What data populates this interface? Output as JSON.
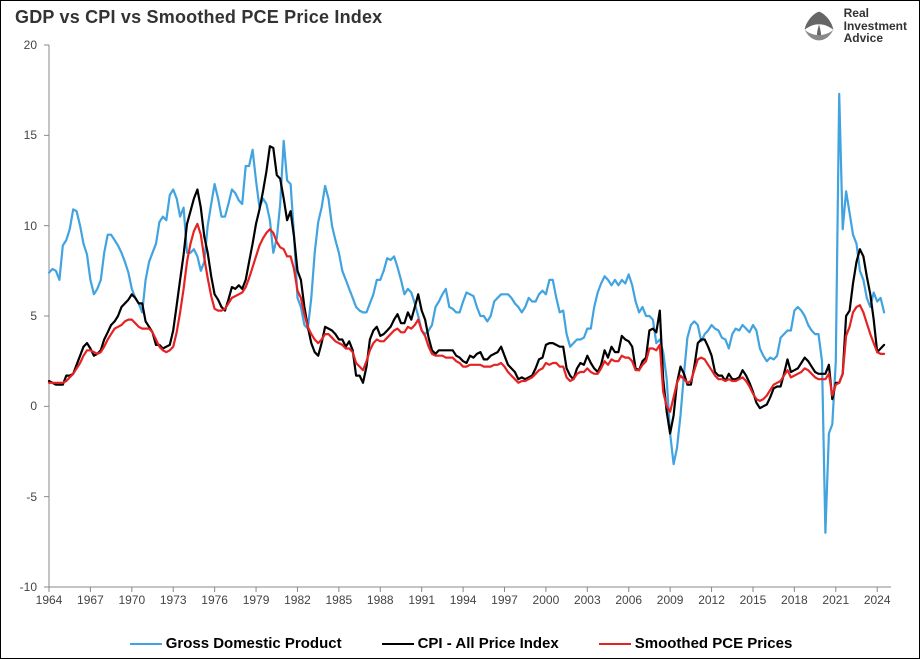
{
  "title": "GDP vs CPI vs Smoothed PCE Price Index",
  "logo": {
    "line1": "Real",
    "line2": "Investment",
    "line3": "Advice"
  },
  "chart": {
    "type": "line",
    "background_color": "#ffffff",
    "title_fontsize": 18,
    "title_fontweight": 700,
    "title_color": "#333333",
    "axis_color": "#888888",
    "tick_label_fontsize": 12,
    "tick_label_color": "#444444",
    "line_width": 2.2,
    "yaxis": {
      "min": -10,
      "max": 20,
      "tick_step": 5,
      "ticks": [
        -10,
        -5,
        0,
        5,
        10,
        15,
        20
      ]
    },
    "xaxis": {
      "min": 1964,
      "max": 2025,
      "tick_step": 3,
      "ticks": [
        1964,
        1967,
        1970,
        1973,
        1976,
        1979,
        1982,
        1985,
        1988,
        1991,
        1994,
        1997,
        2000,
        2003,
        2006,
        2009,
        2012,
        2015,
        2018,
        2021,
        2024
      ]
    },
    "years": [
      1964.0,
      1964.25,
      1964.5,
      1964.75,
      1965.0,
      1965.25,
      1965.5,
      1965.75,
      1966.0,
      1966.25,
      1966.5,
      1966.75,
      1967.0,
      1967.25,
      1967.5,
      1967.75,
      1968.0,
      1968.25,
      1968.5,
      1968.75,
      1969.0,
      1969.25,
      1969.5,
      1969.75,
      1970.0,
      1970.25,
      1970.5,
      1970.75,
      1971.0,
      1971.25,
      1971.5,
      1971.75,
      1972.0,
      1972.25,
      1972.5,
      1972.75,
      1973.0,
      1973.25,
      1973.5,
      1973.75,
      1974.0,
      1974.25,
      1974.5,
      1974.75,
      1975.0,
      1975.25,
      1975.5,
      1975.75,
      1976.0,
      1976.25,
      1976.5,
      1976.75,
      1977.0,
      1977.25,
      1977.5,
      1977.75,
      1978.0,
      1978.25,
      1978.5,
      1978.75,
      1979.0,
      1979.25,
      1979.5,
      1979.75,
      1980.0,
      1980.25,
      1980.5,
      1980.75,
      1981.0,
      1981.25,
      1981.5,
      1981.75,
      1982.0,
      1982.25,
      1982.5,
      1982.75,
      1983.0,
      1983.25,
      1983.5,
      1983.75,
      1984.0,
      1984.25,
      1984.5,
      1984.75,
      1985.0,
      1985.25,
      1985.5,
      1985.75,
      1986.0,
      1986.25,
      1986.5,
      1986.75,
      1987.0,
      1987.25,
      1987.5,
      1987.75,
      1988.0,
      1988.25,
      1988.5,
      1988.75,
      1989.0,
      1989.25,
      1989.5,
      1989.75,
      1990.0,
      1990.25,
      1990.5,
      1990.75,
      1991.0,
      1991.25,
      1991.5,
      1991.75,
      1992.0,
      1992.25,
      1992.5,
      1992.75,
      1993.0,
      1993.25,
      1993.5,
      1993.75,
      1994.0,
      1994.25,
      1994.5,
      1994.75,
      1995.0,
      1995.25,
      1995.5,
      1995.75,
      1996.0,
      1996.25,
      1996.5,
      1996.75,
      1997.0,
      1997.25,
      1997.5,
      1997.75,
      1998.0,
      1998.25,
      1998.5,
      1998.75,
      1999.0,
      1999.25,
      1999.5,
      1999.75,
      2000.0,
      2000.25,
      2000.5,
      2000.75,
      2001.0,
      2001.25,
      2001.5,
      2001.75,
      2002.0,
      2002.25,
      2002.5,
      2002.75,
      2003.0,
      2003.25,
      2003.5,
      2003.75,
      2004.0,
      2004.25,
      2004.5,
      2004.75,
      2005.0,
      2005.25,
      2005.5,
      2005.75,
      2006.0,
      2006.25,
      2006.5,
      2006.75,
      2007.0,
      2007.25,
      2007.5,
      2007.75,
      2008.0,
      2008.25,
      2008.5,
      2008.75,
      2009.0,
      2009.25,
      2009.5,
      2009.75,
      2010.0,
      2010.25,
      2010.5,
      2010.75,
      2011.0,
      2011.25,
      2011.5,
      2011.75,
      2012.0,
      2012.25,
      2012.5,
      2012.75,
      2013.0,
      2013.25,
      2013.5,
      2013.75,
      2014.0,
      2014.25,
      2014.5,
      2014.75,
      2015.0,
      2015.25,
      2015.5,
      2015.75,
      2016.0,
      2016.25,
      2016.5,
      2016.75,
      2017.0,
      2017.25,
      2017.5,
      2017.75,
      2018.0,
      2018.25,
      2018.5,
      2018.75,
      2019.0,
      2019.25,
      2019.5,
      2019.75,
      2020.0,
      2020.25,
      2020.5,
      2020.75,
      2021.0,
      2021.25,
      2021.5,
      2021.75,
      2022.0,
      2022.25,
      2022.5,
      2022.75,
      2023.0,
      2023.25,
      2023.5,
      2023.75,
      2024.0,
      2024.25,
      2024.5
    ],
    "series": [
      {
        "name": "Gross Domestic Product",
        "color": "#41a3df",
        "legend_color": "#41a3df",
        "values": [
          7.4,
          7.6,
          7.5,
          7.0,
          8.9,
          9.2,
          9.8,
          10.9,
          10.8,
          10.0,
          9.0,
          8.4,
          7.0,
          6.2,
          6.5,
          7.0,
          8.5,
          9.5,
          9.5,
          9.2,
          8.9,
          8.5,
          8.0,
          7.4,
          6.5,
          6.0,
          5.7,
          5.2,
          7.0,
          8.0,
          8.5,
          9.0,
          10.2,
          10.5,
          10.3,
          11.7,
          12.0,
          11.5,
          10.5,
          11.0,
          8.5,
          8.5,
          8.7,
          8.3,
          7.5,
          8.0,
          10.0,
          11.2,
          12.3,
          11.5,
          10.5,
          10.5,
          11.2,
          12.0,
          11.8,
          11.4,
          11.2,
          13.3,
          13.3,
          14.2,
          12.5,
          11.0,
          11.5,
          11.2,
          10.3,
          8.5,
          9.3,
          11.2,
          14.7,
          12.5,
          12.3,
          9.5,
          6.0,
          5.5,
          4.5,
          4.3,
          6.0,
          8.5,
          10.2,
          11.0,
          12.2,
          11.5,
          10.0,
          9.2,
          8.5,
          7.5,
          7.0,
          6.5,
          6.0,
          5.5,
          5.3,
          5.2,
          5.2,
          5.7,
          6.2,
          7.0,
          7.0,
          7.5,
          8.2,
          8.1,
          8.3,
          7.7,
          7.0,
          6.2,
          6.5,
          6.3,
          5.7,
          5.0,
          4.2,
          4.0,
          4.2,
          4.5,
          5.5,
          5.8,
          6.2,
          6.5,
          5.5,
          5.4,
          5.2,
          5.2,
          5.8,
          6.3,
          6.2,
          6.1,
          5.5,
          5.0,
          5.0,
          4.7,
          5.0,
          5.8,
          6.0,
          6.2,
          6.2,
          6.2,
          6.0,
          5.7,
          5.5,
          5.2,
          5.5,
          6.0,
          5.8,
          5.8,
          6.2,
          6.4,
          6.2,
          7.0,
          7.0,
          6.0,
          5.2,
          5.3,
          4.0,
          3.3,
          3.5,
          3.7,
          3.7,
          3.8,
          4.3,
          4.3,
          5.5,
          6.3,
          6.8,
          7.2,
          7.0,
          6.7,
          7.0,
          6.7,
          7.0,
          6.8,
          7.3,
          6.7,
          5.8,
          5.2,
          5.5,
          5.0,
          5.0,
          4.8,
          3.5,
          3.7,
          3.0,
          1.5,
          -1.5,
          -3.2,
          -2.3,
          -0.5,
          1.8,
          3.8,
          4.5,
          4.7,
          4.5,
          3.6,
          4.0,
          4.2,
          4.5,
          4.3,
          4.2,
          3.8,
          3.7,
          3.2,
          4.0,
          4.3,
          4.2,
          4.5,
          4.3,
          4.1,
          4.5,
          4.2,
          3.2,
          2.8,
          2.5,
          2.7,
          2.6,
          2.8,
          3.8,
          4.0,
          4.2,
          4.2,
          5.3,
          5.5,
          5.3,
          5.0,
          4.5,
          4.2,
          4.0,
          4.0,
          2.5,
          -7.0,
          -1.5,
          -1.0,
          2.5,
          17.3,
          9.8,
          11.9,
          10.7,
          9.5,
          9.0,
          7.5,
          7.0,
          6.0,
          5.5,
          6.3,
          5.8,
          6.0,
          5.2,
          5.0
        ]
      },
      {
        "name": "CPI - All Price Index",
        "color": "#000000",
        "legend_color": "#000000",
        "values": [
          1.4,
          1.3,
          1.2,
          1.2,
          1.2,
          1.7,
          1.7,
          1.8,
          2.3,
          2.8,
          3.3,
          3.5,
          3.2,
          2.8,
          2.9,
          3.1,
          3.7,
          4.1,
          4.5,
          4.7,
          5.0,
          5.5,
          5.7,
          5.9,
          6.2,
          6.0,
          5.7,
          5.7,
          4.7,
          4.4,
          4.1,
          3.4,
          3.4,
          3.2,
          3.3,
          3.4,
          4.2,
          5.6,
          7.0,
          8.4,
          10.1,
          10.8,
          11.5,
          12.0,
          11.0,
          9.4,
          8.5,
          7.2,
          6.2,
          5.9,
          5.5,
          5.3,
          5.9,
          6.6,
          6.5,
          6.7,
          6.5,
          7.0,
          8.0,
          9.0,
          10.1,
          10.9,
          11.9,
          13.0,
          14.4,
          14.3,
          12.8,
          12.6,
          11.5,
          10.3,
          10.8,
          9.4,
          7.5,
          7.0,
          5.5,
          4.4,
          3.5,
          3.0,
          2.8,
          3.5,
          4.4,
          4.3,
          4.2,
          4.0,
          3.7,
          3.7,
          3.3,
          3.6,
          3.1,
          1.7,
          1.7,
          1.3,
          2.2,
          3.7,
          4.2,
          4.4,
          3.9,
          4.0,
          4.2,
          4.4,
          4.8,
          5.1,
          4.6,
          4.6,
          5.2,
          4.8,
          5.5,
          6.2,
          5.3,
          4.8,
          3.8,
          3.1,
          2.9,
          3.1,
          3.1,
          3.1,
          3.1,
          3.1,
          2.8,
          2.7,
          2.5,
          2.4,
          2.8,
          2.7,
          2.9,
          3.0,
          2.6,
          2.6,
          2.8,
          2.9,
          3.0,
          3.3,
          2.8,
          2.3,
          2.1,
          1.9,
          1.5,
          1.6,
          1.5,
          1.6,
          1.7,
          2.1,
          2.6,
          2.7,
          3.4,
          3.5,
          3.5,
          3.4,
          3.3,
          3.3,
          2.1,
          1.7,
          1.5,
          2.1,
          2.4,
          2.3,
          2.8,
          2.4,
          2.1,
          1.9,
          2.3,
          3.1,
          2.7,
          3.3,
          3.0,
          3.0,
          3.9,
          3.7,
          3.6,
          3.3,
          2.1,
          2.0,
          2.5,
          2.7,
          4.2,
          4.3,
          4.1,
          5.3,
          1.5,
          -0.3,
          -1.5,
          -0.5,
          1.3,
          2.2,
          1.8,
          1.2,
          1.2,
          2.2,
          3.5,
          3.7,
          3.7,
          3.3,
          2.8,
          1.9,
          1.7,
          1.7,
          1.4,
          1.8,
          1.5,
          1.5,
          1.6,
          2.0,
          1.7,
          1.3,
          0.8,
          0.2,
          -0.1,
          0.0,
          0.1,
          0.5,
          1.0,
          1.1,
          1.1,
          1.8,
          2.6,
          1.9,
          2.0,
          2.1,
          2.4,
          2.7,
          2.5,
          2.2,
          1.9,
          1.8,
          1.8,
          1.8,
          2.3,
          0.4,
          1.3,
          1.3,
          1.8,
          5.0,
          5.3,
          6.8,
          8.0,
          8.7,
          8.3,
          7.2,
          6.2,
          4.8,
          3.0,
          3.2,
          3.4,
          3.2,
          3.0,
          2.7
        ]
      },
      {
        "name": "Smoothed PCE Prices",
        "color": "#e62222",
        "legend_color": "#e62222",
        "values": [
          1.3,
          1.3,
          1.3,
          1.3,
          1.3,
          1.4,
          1.6,
          1.8,
          2.1,
          2.4,
          2.8,
          3.1,
          3.1,
          3.0,
          2.9,
          3.0,
          3.3,
          3.7,
          4.0,
          4.3,
          4.4,
          4.5,
          4.7,
          4.8,
          4.8,
          4.6,
          4.4,
          4.3,
          4.3,
          4.3,
          4.1,
          3.7,
          3.3,
          3.1,
          3.0,
          3.1,
          3.3,
          4.1,
          5.2,
          6.5,
          8.0,
          9.0,
          9.7,
          10.1,
          9.5,
          8.2,
          7.1,
          6.1,
          5.4,
          5.3,
          5.3,
          5.4,
          5.7,
          6.0,
          6.1,
          6.2,
          6.3,
          6.6,
          7.1,
          7.7,
          8.3,
          8.9,
          9.3,
          9.6,
          9.8,
          9.6,
          9.1,
          8.8,
          8.7,
          8.3,
          8.3,
          7.6,
          6.4,
          6.0,
          5.1,
          4.4,
          4.0,
          3.7,
          3.5,
          3.7,
          4.0,
          4.0,
          3.8,
          3.6,
          3.5,
          3.4,
          3.2,
          3.2,
          3.0,
          2.4,
          2.2,
          2.0,
          2.5,
          3.1,
          3.5,
          3.7,
          3.6,
          3.6,
          3.8,
          4.0,
          4.2,
          4.3,
          4.1,
          4.1,
          4.4,
          4.3,
          4.5,
          4.8,
          4.2,
          3.9,
          3.3,
          2.9,
          2.8,
          2.8,
          2.8,
          2.7,
          2.7,
          2.7,
          2.5,
          2.4,
          2.2,
          2.2,
          2.3,
          2.3,
          2.3,
          2.3,
          2.2,
          2.2,
          2.2,
          2.3,
          2.3,
          2.4,
          2.2,
          1.9,
          1.7,
          1.5,
          1.3,
          1.4,
          1.4,
          1.5,
          1.6,
          1.8,
          2.0,
          2.1,
          2.4,
          2.3,
          2.4,
          2.4,
          2.2,
          2.2,
          1.6,
          1.4,
          1.5,
          1.8,
          1.9,
          1.9,
          2.1,
          1.9,
          1.8,
          1.8,
          2.1,
          2.5,
          2.3,
          2.6,
          2.5,
          2.5,
          2.8,
          2.7,
          2.7,
          2.5,
          2.0,
          2.0,
          2.3,
          2.5,
          3.2,
          3.2,
          3.1,
          3.4,
          0.8,
          0.0,
          -0.3,
          0.5,
          1.3,
          1.7,
          1.5,
          1.3,
          1.4,
          2.0,
          2.6,
          2.7,
          2.6,
          2.3,
          2.0,
          1.7,
          1.5,
          1.5,
          1.4,
          1.5,
          1.4,
          1.4,
          1.5,
          1.6,
          1.4,
          1.1,
          0.7,
          0.4,
          0.3,
          0.4,
          0.6,
          0.9,
          1.2,
          1.3,
          1.4,
          1.7,
          2.0,
          1.6,
          1.7,
          1.8,
          1.9,
          2.1,
          2.0,
          1.8,
          1.6,
          1.5,
          1.5,
          1.5,
          1.8,
          0.6,
          1.2,
          1.3,
          1.8,
          3.9,
          4.4,
          5.2,
          5.5,
          5.6,
          5.2,
          4.6,
          4.0,
          3.5,
          3.0,
          2.9,
          2.9,
          2.7,
          2.6,
          2.6
        ]
      }
    ],
    "legend": {
      "fontsize": 15,
      "fontweight": 700,
      "items": [
        {
          "label": "Gross Domestic Product",
          "color": "#41a3df"
        },
        {
          "label": "CPI - All Price Index",
          "color": "#000000"
        },
        {
          "label": "Smoothed PCE Prices",
          "color": "#e62222"
        }
      ]
    }
  }
}
